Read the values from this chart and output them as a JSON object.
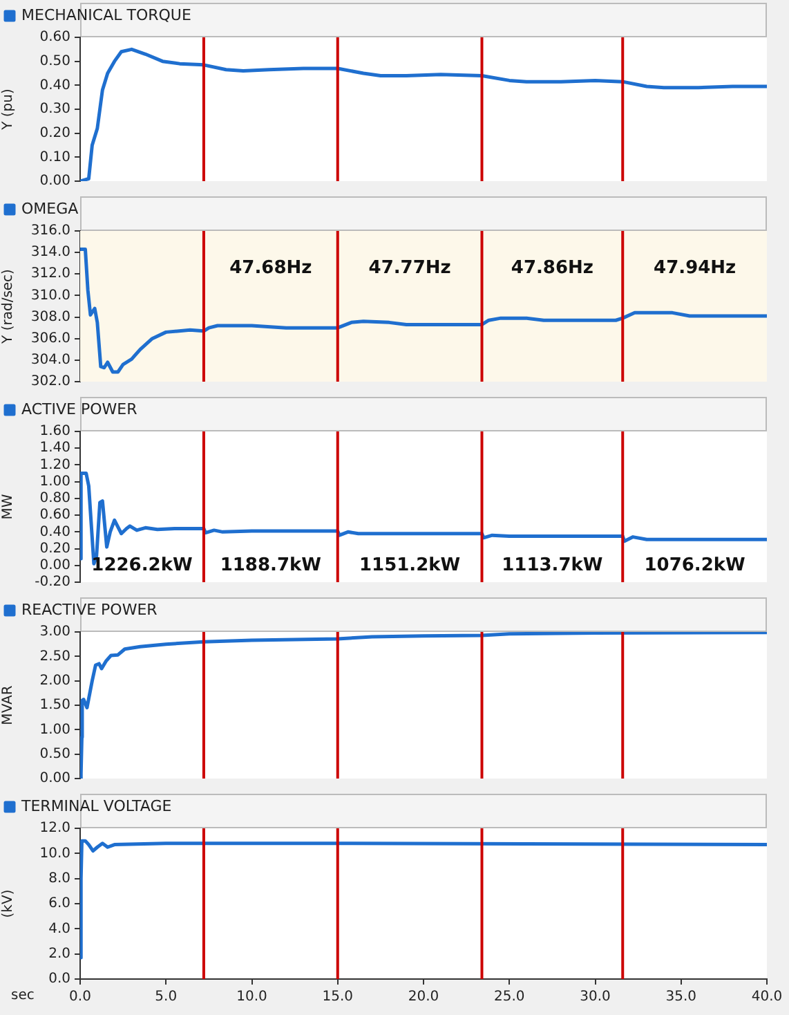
{
  "chart_data": [
    {
      "type": "line",
      "ylabel": "Y (pu)",
      "legend": "top left",
      "grid": false,
      "tick_labels": "y",
      "xlim": [
        0,
        40
      ],
      "ylim": [
        0,
        0.6
      ],
      "yticks": [
        {
          "value": 0,
          "label": "0.00"
        },
        {
          "value": 0.1,
          "label": "0.10"
        },
        {
          "value": 0.2,
          "label": "0.20"
        },
        {
          "value": 0.3,
          "label": "0.30"
        },
        {
          "value": 0.4,
          "label": "0.40"
        },
        {
          "value": 0.5,
          "label": "0.50"
        },
        {
          "value": 0.6,
          "label": "0.60"
        }
      ],
      "series": [
        {
          "name": "MECHANICAL TORQUE",
          "color": "#1f6fcf",
          "x": [
            0,
            0.5,
            0.7,
            1.0,
            1.3,
            1.6,
            2.0,
            2.4,
            3.0,
            3.8,
            4.8,
            5.8,
            7.2,
            8.5,
            9.5,
            11,
            13,
            15,
            16.5,
            17.5,
            19,
            21,
            23.4,
            25,
            26,
            28,
            30,
            31.6,
            33,
            34,
            36,
            38,
            40
          ],
          "values": [
            0,
            0.01,
            0.15,
            0.22,
            0.38,
            0.45,
            0.5,
            0.54,
            0.55,
            0.53,
            0.5,
            0.49,
            0.485,
            0.465,
            0.46,
            0.465,
            0.47,
            0.47,
            0.45,
            0.44,
            0.44,
            0.445,
            0.44,
            0.42,
            0.415,
            0.415,
            0.42,
            0.415,
            0.395,
            0.39,
            0.39,
            0.395,
            0.395
          ]
        }
      ],
      "ref_lines": [
        {
          "axis": "x",
          "value": 7.2,
          "color": "#cc0000"
        },
        {
          "axis": "x",
          "value": 15.0,
          "color": "#cc0000"
        },
        {
          "axis": "x",
          "value": 23.4,
          "color": "#cc0000"
        },
        {
          "axis": "x",
          "value": 31.6,
          "color": "#cc0000"
        }
      ]
    },
    {
      "type": "line",
      "ylabel": "Y (rad/sec)",
      "legend": "top left",
      "grid": false,
      "tick_labels": "y",
      "xlim": [
        0,
        40
      ],
      "ylim": [
        302,
        316
      ],
      "yticks": [
        {
          "value": 302,
          "label": "302.0"
        },
        {
          "value": 304,
          "label": "304.0"
        },
        {
          "value": 306,
          "label": "306.0"
        },
        {
          "value": 308,
          "label": "308.0"
        },
        {
          "value": 310,
          "label": "310.0"
        },
        {
          "value": 312,
          "label": "312.0"
        },
        {
          "value": 314,
          "label": "314.0"
        },
        {
          "value": 316,
          "label": "316.0"
        }
      ],
      "series": [
        {
          "name": "OMEGA",
          "color": "#1f6fcf",
          "x": [
            0,
            0.3,
            0.45,
            0.6,
            0.85,
            1.0,
            1.2,
            1.4,
            1.6,
            1.9,
            2.2,
            2.5,
            3.0,
            3.5,
            4.2,
            5.0,
            6.4,
            7.2,
            7.5,
            8.0,
            10,
            12,
            15,
            15.8,
            16.5,
            18,
            19,
            23.4,
            23.8,
            24.5,
            26,
            27,
            31.2,
            31.6,
            32.3,
            34.5,
            35.5,
            40
          ],
          "values": [
            314.3,
            314.3,
            310.5,
            308.2,
            308.8,
            307.5,
            303.4,
            303.3,
            303.8,
            302.9,
            302.9,
            303.6,
            304.1,
            305.0,
            306.0,
            306.6,
            306.8,
            306.7,
            307.0,
            307.2,
            307.2,
            307.0,
            307.0,
            307.5,
            307.6,
            307.5,
            307.3,
            307.3,
            307.7,
            307.9,
            307.9,
            307.7,
            307.7,
            307.9,
            308.4,
            308.4,
            308.1,
            308.1
          ]
        }
      ],
      "bands": [
        {
          "axis": "y",
          "from": 302,
          "to": 316,
          "color": "#fdf8ea"
        }
      ],
      "ref_lines": [
        {
          "axis": "x",
          "value": 7.2,
          "color": "#cc0000"
        },
        {
          "axis": "x",
          "value": 15.0,
          "color": "#cc0000"
        },
        {
          "axis": "x",
          "value": 23.4,
          "color": "#cc0000"
        },
        {
          "axis": "x",
          "value": 31.6,
          "color": "#cc0000"
        }
      ],
      "annotations": [
        "47.68Hz",
        "47.77Hz",
        "47.86Hz",
        "47.94Hz"
      ]
    },
    {
      "type": "line",
      "ylabel": "MW",
      "legend": "top left",
      "grid": false,
      "tick_labels": "y",
      "xlim": [
        0,
        40
      ],
      "ylim": [
        -0.2,
        1.6
      ],
      "yticks": [
        {
          "value": -0.2,
          "label": "-0.20"
        },
        {
          "value": 0,
          "label": "0.00"
        },
        {
          "value": 0.2,
          "label": "0.20"
        },
        {
          "value": 0.4,
          "label": "0.40"
        },
        {
          "value": 0.6,
          "label": "0.60"
        },
        {
          "value": 0.8,
          "label": "0.80"
        },
        {
          "value": 1.0,
          "label": "1.00"
        },
        {
          "value": 1.2,
          "label": "1.20"
        },
        {
          "value": 1.4,
          "label": "1.40"
        },
        {
          "value": 1.6,
          "label": "1.60"
        }
      ],
      "series": [
        {
          "name": "ACTIVE POWER",
          "color": "#1f6fcf",
          "x": [
            0,
            0.05,
            0.35,
            0.5,
            0.8,
            0.95,
            1.15,
            1.3,
            1.55,
            1.75,
            2.0,
            2.4,
            2.7,
            2.9,
            3.3,
            3.8,
            4.5,
            5.5,
            7.2,
            7.3,
            7.8,
            8.3,
            10,
            15,
            15.1,
            15.6,
            16.2,
            23.4,
            23.5,
            24,
            25,
            31.6,
            31.7,
            32.2,
            33,
            40
          ],
          "values": [
            0.08,
            1.1,
            1.1,
            0.95,
            0.02,
            0.1,
            0.75,
            0.77,
            0.22,
            0.4,
            0.54,
            0.38,
            0.44,
            0.47,
            0.42,
            0.45,
            0.43,
            0.44,
            0.44,
            0.39,
            0.42,
            0.4,
            0.41,
            0.41,
            0.36,
            0.4,
            0.38,
            0.38,
            0.33,
            0.36,
            0.35,
            0.35,
            0.29,
            0.34,
            0.31,
            0.31
          ]
        }
      ],
      "ref_lines": [
        {
          "axis": "x",
          "value": 7.2,
          "color": "#cc0000"
        },
        {
          "axis": "x",
          "value": 15.0,
          "color": "#cc0000"
        },
        {
          "axis": "x",
          "value": 23.4,
          "color": "#cc0000"
        },
        {
          "axis": "x",
          "value": 31.6,
          "color": "#cc0000"
        }
      ],
      "annotations": [
        "1226.2kW",
        "1188.7kW",
        "1151.2kW",
        "1113.7kW",
        "1076.2kW"
      ]
    },
    {
      "type": "line",
      "ylabel": "MVAR",
      "legend": "top left",
      "grid": false,
      "tick_labels": "y",
      "xlim": [
        0,
        40
      ],
      "ylim": [
        0,
        3.0
      ],
      "yticks": [
        {
          "value": 0,
          "label": "0.00"
        },
        {
          "value": 0.5,
          "label": "0.50"
        },
        {
          "value": 1.0,
          "label": "1.00"
        },
        {
          "value": 1.5,
          "label": "1.50"
        },
        {
          "value": 2.0,
          "label": "2.00"
        },
        {
          "value": 2.5,
          "label": "2.50"
        },
        {
          "value": 3.0,
          "label": "3.00"
        }
      ],
      "series": [
        {
          "name": "REACTIVE POWER",
          "color": "#1f6fcf",
          "x": [
            0,
            0.05,
            0.1,
            0.12,
            0.2,
            0.4,
            0.7,
            0.9,
            1.1,
            1.25,
            1.5,
            1.8,
            2.2,
            2.6,
            3.5,
            5.0,
            7.2,
            10,
            15,
            17,
            20,
            23.4,
            25,
            30,
            40
          ],
          "values": [
            0,
            0.1,
            0.85,
            1.6,
            1.62,
            1.45,
            2.0,
            2.32,
            2.35,
            2.25,
            2.4,
            2.52,
            2.53,
            2.65,
            2.7,
            2.75,
            2.8,
            2.83,
            2.86,
            2.9,
            2.92,
            2.93,
            2.96,
            2.98,
            2.99
          ]
        }
      ],
      "ref_lines": [
        {
          "axis": "x",
          "value": 7.2,
          "color": "#cc0000"
        },
        {
          "axis": "x",
          "value": 15.0,
          "color": "#cc0000"
        },
        {
          "axis": "x",
          "value": 23.4,
          "color": "#cc0000"
        },
        {
          "axis": "x",
          "value": 31.6,
          "color": "#cc0000"
        }
      ]
    },
    {
      "type": "line",
      "ylabel": "(kV)",
      "xlabel": "sec",
      "legend": "top left",
      "grid": false,
      "xlim": [
        0,
        40
      ],
      "ylim": [
        0,
        12
      ],
      "xticks": [
        {
          "value": 0,
          "label": "0.0"
        },
        {
          "value": 5,
          "label": "5.0"
        },
        {
          "value": 10,
          "label": "10.0"
        },
        {
          "value": 15,
          "label": "15.0"
        },
        {
          "value": 20,
          "label": "20.0"
        },
        {
          "value": 25,
          "label": "25.0"
        },
        {
          "value": 30,
          "label": "30.0"
        },
        {
          "value": 35,
          "label": "35.0"
        },
        {
          "value": 40,
          "label": "40.0"
        }
      ],
      "yticks": [
        {
          "value": 0,
          "label": "0.0"
        },
        {
          "value": 2,
          "label": "2.0"
        },
        {
          "value": 4,
          "label": "4.0"
        },
        {
          "value": 6,
          "label": "6.0"
        },
        {
          "value": 8,
          "label": "8.0"
        },
        {
          "value": 10,
          "label": "10.0"
        },
        {
          "value": 12,
          "label": "12.0"
        }
      ],
      "series": [
        {
          "name": "TERMINAL VOLTAGE",
          "color": "#1f6fcf",
          "x": [
            0,
            0.05,
            0.1,
            0.3,
            0.5,
            0.75,
            1.0,
            1.3,
            1.6,
            2.0,
            5,
            7.2,
            15,
            40
          ],
          "values": [
            1.7,
            8,
            11,
            11,
            10.7,
            10.2,
            10.5,
            10.8,
            10.5,
            10.7,
            10.8,
            10.8,
            10.8,
            10.7
          ]
        }
      ],
      "ref_lines": [
        {
          "axis": "x",
          "value": 7.2,
          "color": "#cc0000"
        },
        {
          "axis": "x",
          "value": 15.0,
          "color": "#cc0000"
        },
        {
          "axis": "x",
          "value": 23.4,
          "color": "#cc0000"
        },
        {
          "axis": "x",
          "value": 31.6,
          "color": "#cc0000"
        }
      ]
    }
  ]
}
